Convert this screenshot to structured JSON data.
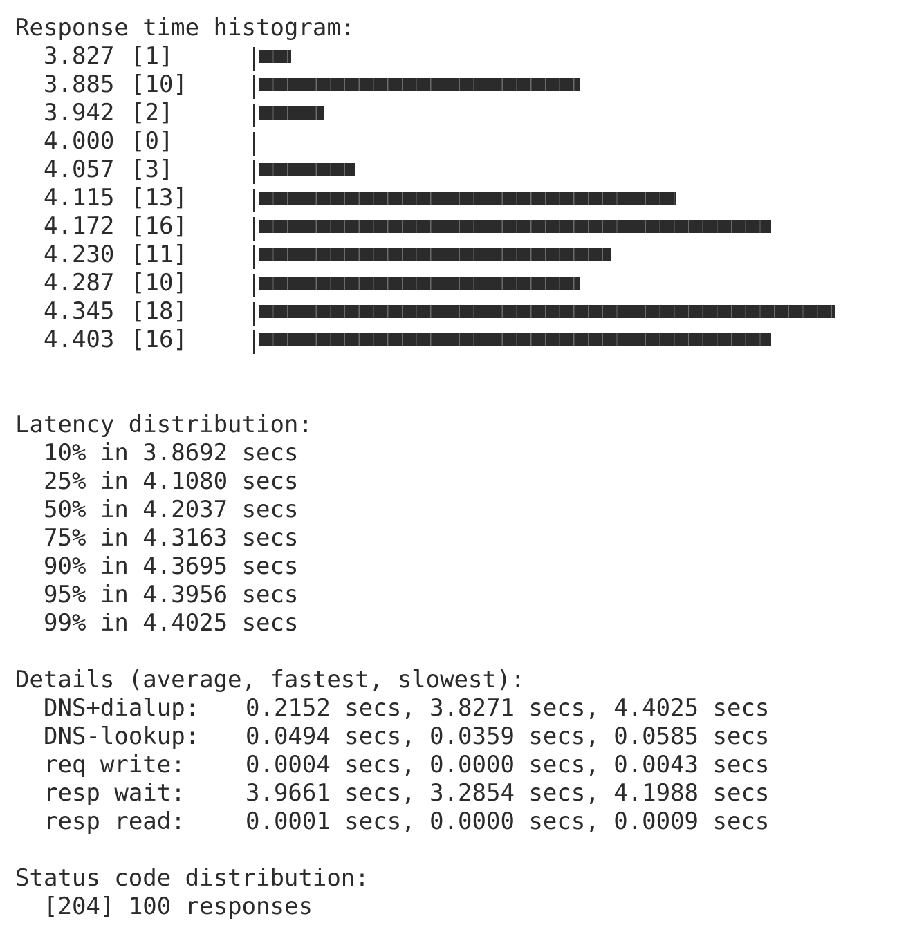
{
  "histogram": {
    "title": "Response time histogram:",
    "buckets": [
      {
        "bucket": "3.827",
        "count": "[1]",
        "value": 1
      },
      {
        "bucket": "3.885",
        "count": "[10]",
        "value": 10
      },
      {
        "bucket": "3.942",
        "count": "[2]",
        "value": 2
      },
      {
        "bucket": "4.000",
        "count": "[0]",
        "value": 0
      },
      {
        "bucket": "4.057",
        "count": "[3]",
        "value": 3
      },
      {
        "bucket": "4.115",
        "count": "[13]",
        "value": 13
      },
      {
        "bucket": "4.172",
        "count": "[16]",
        "value": 16
      },
      {
        "bucket": "4.230",
        "count": "[11]",
        "value": 11
      },
      {
        "bucket": "4.287",
        "count": "[10]",
        "value": 10
      },
      {
        "bucket": "4.345",
        "count": "[18]",
        "value": 18
      },
      {
        "bucket": "4.403",
        "count": "[16]",
        "value": 16
      }
    ],
    "bar_char": "■"
  },
  "latency": {
    "title": "Latency distribution:",
    "rows": [
      {
        "pct": "10%",
        "text": " in 3.8692 secs"
      },
      {
        "pct": "25%",
        "text": " in 4.1080 secs"
      },
      {
        "pct": "50%",
        "text": " in 4.2037 secs"
      },
      {
        "pct": "75%",
        "text": " in 4.3163 secs"
      },
      {
        "pct": "90%",
        "text": " in 4.3695 secs"
      },
      {
        "pct": "95%",
        "text": " in 4.3956 secs"
      },
      {
        "pct": "99%",
        "text": " in 4.4025 secs"
      }
    ]
  },
  "details": {
    "title": "Details (average, fastest, slowest):",
    "rows": [
      {
        "label": "DNS+dialup:",
        "values": "0.2152 secs, 3.8271 secs, 4.4025 secs"
      },
      {
        "label": "DNS-lookup:",
        "values": "0.0494 secs, 0.0359 secs, 0.0585 secs"
      },
      {
        "label": "req write:",
        "values": "0.0004 secs, 0.0000 secs, 0.0043 secs"
      },
      {
        "label": "resp wait:",
        "values": "3.9661 secs, 3.2854 secs, 4.1988 secs"
      },
      {
        "label": "resp read:",
        "values": "0.0001 secs, 0.0000 secs, 0.0009 secs"
      }
    ]
  },
  "status": {
    "title": "Status code distribution:",
    "rows": [
      {
        "text": "[204] 100 responses"
      }
    ]
  }
}
